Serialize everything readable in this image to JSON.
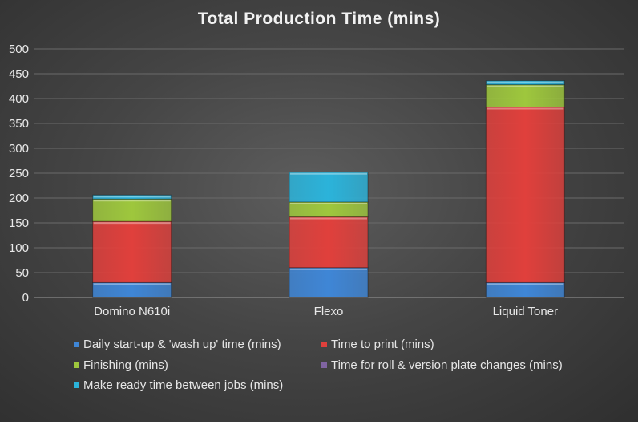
{
  "chart_data": {
    "type": "bar",
    "stacked": true,
    "title": "Total Production Time (mins)",
    "xlabel": "",
    "ylabel": "",
    "ylim": [
      0,
      500
    ],
    "yticks": [
      0,
      50,
      100,
      150,
      200,
      250,
      300,
      350,
      400,
      450,
      500
    ],
    "grid": true,
    "legend_position": "bottom",
    "categories": [
      "Domino N610i",
      "Flexo",
      "Liquid Toner"
    ],
    "series": [
      {
        "name": "Daily start-up & 'wash up' time (mins)",
        "color": "#3f86d6",
        "values": [
          30,
          60,
          30
        ]
      },
      {
        "name": "Time to print (mins)",
        "color": "#e0403c",
        "values": [
          123,
          102,
          353
        ]
      },
      {
        "name": "Finishing (mins)",
        "color": "#9ec73d",
        "values": [
          45,
          30,
          45
        ]
      },
      {
        "name": "Time for roll & version plate changes (mins)",
        "color": "#8064a2",
        "values": [
          0,
          0,
          0
        ]
      },
      {
        "name": "Make ready time between jobs (mins)",
        "color": "#2bb3da",
        "values": [
          8,
          60,
          8
        ]
      }
    ]
  }
}
